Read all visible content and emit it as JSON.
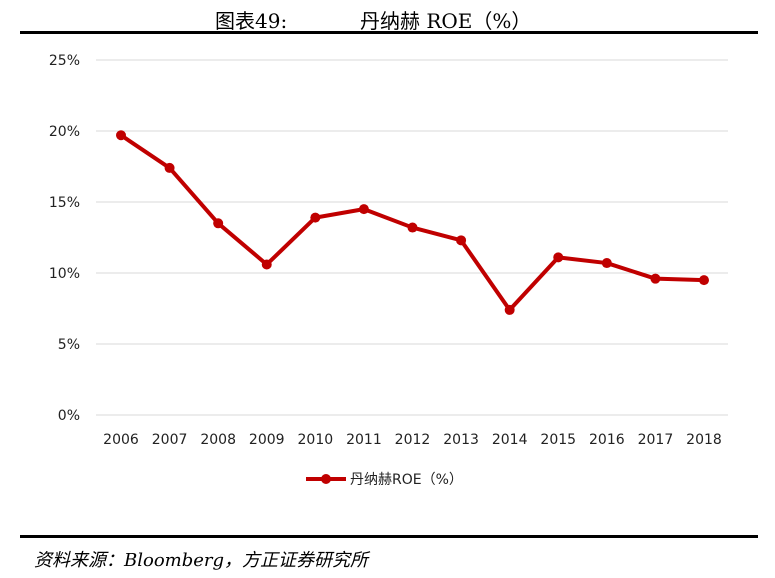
{
  "header": {
    "figure_label": "图表49:",
    "figure_name": "丹纳赫 ROE（%）"
  },
  "source": "资料来源：Bloomberg，方正证券研究所",
  "colors": {
    "line": "#C00000",
    "grid": "#D9D9D9",
    "rule": "#000000"
  },
  "chart_data": {
    "type": "line",
    "title": "",
    "xlabel": "",
    "ylabel": "",
    "categories": [
      "2006",
      "2007",
      "2008",
      "2009",
      "2010",
      "2011",
      "2012",
      "2013",
      "2014",
      "2015",
      "2016",
      "2017",
      "2018"
    ],
    "series": [
      {
        "name": "丹纳赫ROE（%）",
        "values": [
          19.7,
          17.4,
          13.5,
          10.6,
          13.9,
          14.5,
          13.2,
          12.3,
          7.4,
          11.1,
          10.7,
          9.6,
          9.5
        ]
      }
    ],
    "ylim": [
      0,
      25
    ],
    "yticks": [
      0,
      5,
      10,
      15,
      20,
      25
    ],
    "ytick_labels": [
      "0%",
      "5%",
      "10%",
      "15%",
      "20%",
      "25%"
    ],
    "grid": true,
    "legend": "bottom-center"
  }
}
